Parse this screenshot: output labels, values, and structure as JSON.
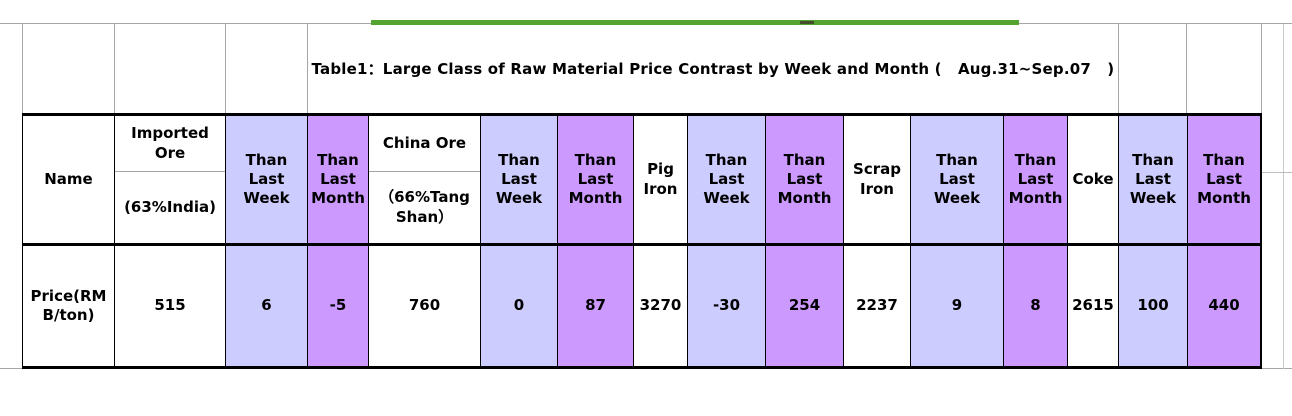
{
  "title": {
    "text": "Table1：Large Class of Raw Material Price Contrast by Week and Month (   Aug.31~Sep.07   )"
  },
  "header": {
    "name": "Name",
    "week_label": "Than Last Week",
    "month_label": "Than Last Month",
    "groups": [
      {
        "material": "Imported Ore",
        "spec": "(63%India)"
      },
      {
        "material": "China Ore",
        "spec": "（66%TangShan）"
      },
      {
        "material": "Pig Iron"
      },
      {
        "material": "Scrap Iron"
      },
      {
        "material": "Coke"
      }
    ]
  },
  "row": {
    "label": "Price(RMB/ton)",
    "values": [
      "515",
      "6",
      "-5",
      "760",
      "0",
      "87",
      "3270",
      "-30",
      "254",
      "2237",
      "9",
      "8",
      "2615",
      "100",
      "440"
    ]
  },
  "colors": {
    "week_bg": "#CCCCFF",
    "month_bg": "#CC99FF",
    "green_line": "#53A32E",
    "gridline_gray": "#A6A6A6",
    "table_border": "#000000"
  },
  "chart_data": {
    "type": "table",
    "title": "Table1：Large Class of Raw Material Price Contrast by Week and Month (Aug.31~Sep.07)",
    "columns": [
      "Name",
      "Imported Ore (63%India)",
      "Than Last Week",
      "Than Last Month",
      "China Ore （66%TangShan）",
      "Than Last Week",
      "Than Last Month",
      "Pig Iron",
      "Than Last Week",
      "Than Last Month",
      "Scrap Iron",
      "Than Last Week",
      "Than Last Month",
      "Coke",
      "Than Last Week",
      "Than Last Month"
    ],
    "rows": [
      [
        "Price(RMB/ton)",
        515,
        6,
        -5,
        760,
        0,
        87,
        3270,
        -30,
        254,
        2237,
        9,
        8,
        2615,
        100,
        440
      ]
    ],
    "layout_hints": {
      "week_columns_bg": "#CCCCFF",
      "month_columns_bg": "#CC99FF",
      "grid": "on"
    }
  }
}
